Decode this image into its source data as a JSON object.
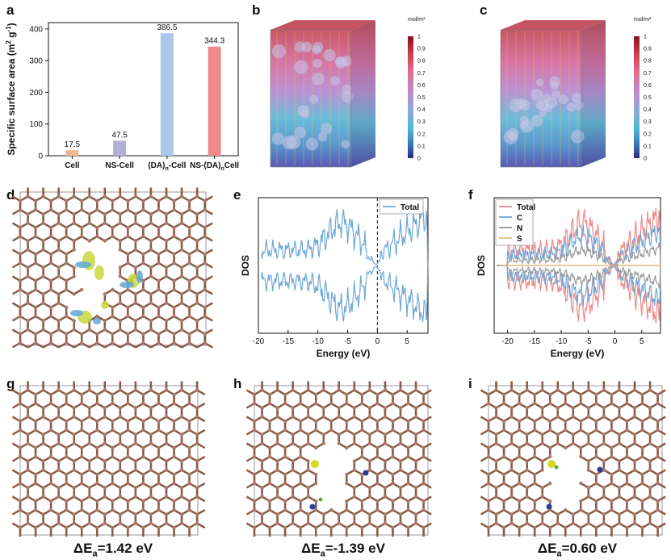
{
  "panel_labels": {
    "a": "a",
    "b": "b",
    "c": "c",
    "d": "d",
    "e": "e",
    "f": "f",
    "g": "g",
    "h": "h",
    "i": "i"
  },
  "chart_data": [
    {
      "panel": "a",
      "type": "bar",
      "categories": [
        "Cell",
        "NS-Cell",
        "(DA)n-Cell",
        "NS-(DA)nCell"
      ],
      "category_display": [
        {
          "main": "Cell",
          "sub": "",
          "tail": ""
        },
        {
          "main": "NS-Cell",
          "sub": "",
          "tail": ""
        },
        {
          "main": "(DA)",
          "sub": "n",
          "tail": "-Cell"
        },
        {
          "main": "NS-(DA)",
          "sub": "n",
          "tail": "Cell"
        }
      ],
      "values": [
        17.5,
        47.5,
        386.5,
        344.3
      ],
      "value_labels": [
        "17.5",
        "47.5",
        "386.5",
        "344.3"
      ],
      "colors": [
        "#f0b993",
        "#b3b0d6",
        "#a9c8ec",
        "#ef8a8a"
      ],
      "ylabel": "Specific surface area (m² g⁻¹)",
      "ylabel_parts": {
        "pre": "Specific surface area (m",
        "sup1": "2",
        "mid": " g",
        "sup2": "-1",
        "post": ")"
      },
      "ylim": [
        0,
        420
      ],
      "yticks": [
        0,
        100,
        200,
        300,
        400
      ]
    },
    {
      "panel": "e",
      "type": "line",
      "xlabel": "Energy (eV)",
      "ylabel": "DOS",
      "xlim": [
        -20,
        8.5
      ],
      "xticks": [
        -20,
        -15,
        -10,
        -5,
        0,
        5
      ],
      "legend": "top-right",
      "fermi_level": 0,
      "series": [
        {
          "name": "Total",
          "color": "#6fa8d6"
        }
      ]
    },
    {
      "panel": "f",
      "type": "line",
      "xlabel": "Energy (eV)",
      "ylabel": "DOS",
      "xlim": [
        -22.5,
        8.5
      ],
      "xticks": [
        -20,
        -15,
        -10,
        -5,
        0,
        5
      ],
      "legend": "top-left",
      "series": [
        {
          "name": "Total",
          "color": "#ee8a8a"
        },
        {
          "name": "C",
          "color": "#6fa8d6"
        },
        {
          "name": "N",
          "color": "#999999"
        },
        {
          "name": "S",
          "color": "#e8b87e"
        }
      ]
    }
  ],
  "colorbars": {
    "b": {
      "unit": "mol/m³",
      "ticks": [
        "1",
        "0.9",
        "0.8",
        "0.7",
        "0.6",
        "0.5",
        "0.4",
        "0.3",
        "0.2",
        "0.1",
        "0"
      ]
    },
    "c": {
      "unit": "mol/m³",
      "ticks": [
        "1",
        "0.9",
        "0.8",
        "0.7",
        "0.6",
        "0.5",
        "0.4",
        "0.3",
        "0.2",
        "0.1",
        "0"
      ]
    }
  },
  "energies": {
    "g": {
      "pre": "ΔE",
      "sub": "a",
      "val": "=1.42 eV"
    },
    "h": {
      "pre": "ΔE",
      "sub": "a",
      "val": "=-1.39 eV"
    },
    "i": {
      "pre": "ΔE",
      "sub": "a",
      "val": "=0.60 eV"
    }
  },
  "colors": {
    "lattice": "#8a5a44",
    "atom": "#a8786a",
    "sulfur": "#d8d820",
    "nitrogen": "#2a3a9a",
    "hydrogen": "#5aaa3a"
  }
}
